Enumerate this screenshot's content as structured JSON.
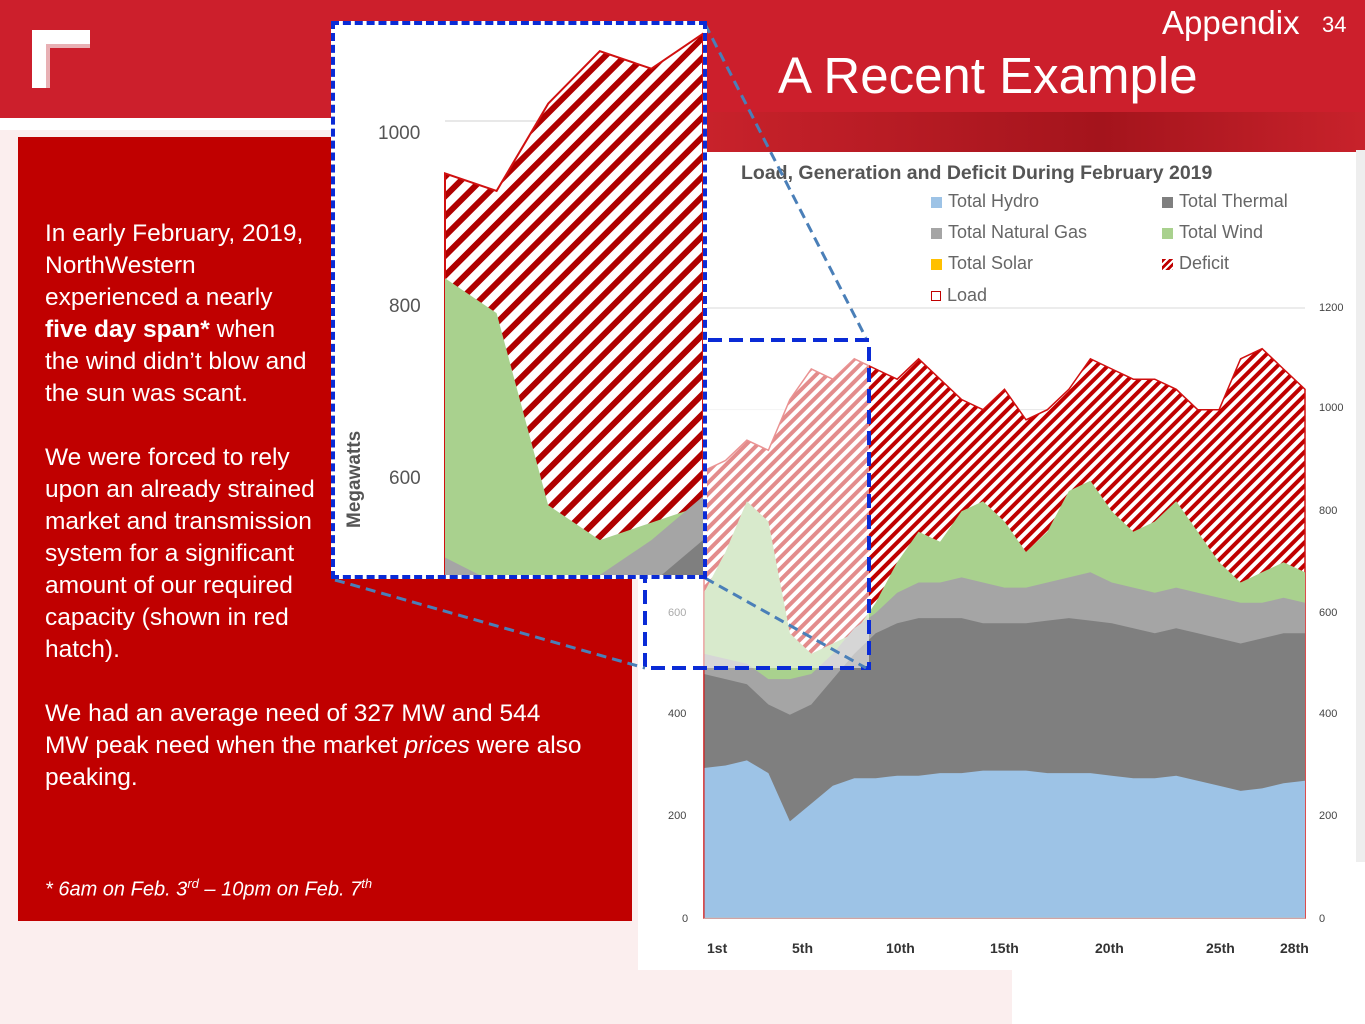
{
  "header": {
    "section": "Appendix",
    "page_number": "34",
    "title": "A Recent Example"
  },
  "left_panel": {
    "paragraph1_a": "In early February, 2019, NorthWestern experienced a nearly ",
    "paragraph1_bold": "five day span*",
    "paragraph1_b": " when the wind didn’t blow and the sun was scant.",
    "paragraph2": "We were forced to rely upon an already strained market and transmission system for a significant amount of our required capacity (shown in red hatch).",
    "paragraph3_a": "We had an average need of 327 MW and 544 MW peak need when the market ",
    "paragraph3_italic": "prices",
    "paragraph3_b": " were also peaking.",
    "footnote_a": "* 6am on Feb. 3",
    "footnote_sup1": "rd",
    "footnote_b": " – 10pm on Feb. 7",
    "footnote_sup2": "th"
  },
  "colors": {
    "header_red": "#cc1f2c",
    "panel_red": "#c00000",
    "hydro": "#9dc3e6",
    "thermal": "#7f7f7f",
    "natural_gas": "#a5a5a5",
    "wind": "#a9d18e",
    "solar": "#ffc000",
    "deficit": "#c00000",
    "inset_border": "#0a2bd6"
  },
  "chart_data": {
    "type": "area",
    "title": "Load, Generation and Deficit During February 2019",
    "legend": [
      {
        "name": "Total Hydro",
        "icon": "square-swatch"
      },
      {
        "name": "Total Thermal",
        "icon": "square-swatch"
      },
      {
        "name": "Total Natural Gas",
        "icon": "square-swatch"
      },
      {
        "name": "Total Wind",
        "icon": "square-swatch"
      },
      {
        "name": "Total Solar",
        "icon": "square-swatch"
      },
      {
        "name": "Deficit",
        "icon": "hatch-swatch"
      },
      {
        "name": "Load",
        "icon": "outline-swatch"
      }
    ],
    "y_ticks_left": [
      "0",
      "200",
      "400",
      "600"
    ],
    "y_ticks_right": [
      "0",
      "200",
      "400",
      "600",
      "800",
      "1000",
      "1200"
    ],
    "ylim": [
      0,
      1200
    ],
    "x_ticks": [
      "1st",
      "5th",
      "10th",
      "15th",
      "20th",
      "25th",
      "28th"
    ],
    "x_tick_days": [
      1,
      5,
      10,
      15,
      20,
      25,
      28
    ],
    "xlim": [
      1,
      29
    ],
    "series": [
      {
        "name": "Total Hydro",
        "day": [
          1,
          2,
          3,
          4,
          5,
          6,
          7,
          8,
          9,
          10,
          11,
          12,
          13,
          14,
          15,
          16,
          17,
          18,
          19,
          20,
          21,
          22,
          23,
          24,
          25,
          26,
          27,
          28,
          29
        ],
        "values": [
          295,
          300,
          310,
          285,
          190,
          225,
          260,
          275,
          275,
          280,
          280,
          285,
          285,
          290,
          290,
          290,
          285,
          285,
          285,
          280,
          275,
          275,
          280,
          270,
          260,
          250,
          255,
          265,
          270
        ]
      },
      {
        "name": "Total Thermal",
        "day": [
          1,
          2,
          3,
          4,
          5,
          6,
          7,
          8,
          9,
          10,
          11,
          12,
          13,
          14,
          15,
          16,
          17,
          18,
          19,
          20,
          21,
          22,
          23,
          24,
          25,
          26,
          27,
          28,
          29
        ],
        "values": [
          480,
          470,
          460,
          420,
          400,
          420,
          470,
          520,
          560,
          580,
          590,
          590,
          590,
          580,
          580,
          580,
          585,
          590,
          585,
          580,
          570,
          560,
          570,
          560,
          550,
          540,
          550,
          560,
          560
        ]
      },
      {
        "name": "Total Natural Gas",
        "day": [
          1,
          2,
          3,
          4,
          5,
          6,
          7,
          8,
          9,
          10,
          11,
          12,
          13,
          14,
          15,
          16,
          17,
          18,
          19,
          20,
          21,
          22,
          23,
          24,
          25,
          26,
          27,
          28,
          29
        ],
        "values": [
          520,
          510,
          500,
          470,
          470,
          480,
          520,
          570,
          600,
          640,
          660,
          660,
          670,
          660,
          650,
          650,
          660,
          670,
          680,
          660,
          650,
          640,
          650,
          640,
          630,
          620,
          620,
          630,
          620
        ]
      },
      {
        "name": "Total Wind",
        "day": [
          1,
          2,
          3,
          4,
          5,
          6,
          7,
          8,
          9,
          10,
          11,
          12,
          13,
          14,
          15,
          16,
          17,
          18,
          19,
          20,
          21,
          22,
          23,
          24,
          25,
          26,
          27,
          28,
          29
        ],
        "values": [
          640,
          720,
          820,
          780,
          560,
          520,
          540,
          560,
          620,
          700,
          760,
          740,
          800,
          820,
          780,
          720,
          760,
          840,
          860,
          800,
          760,
          780,
          820,
          760,
          700,
          660,
          680,
          700,
          680
        ]
      },
      {
        "name": "Load",
        "day": [
          1,
          2,
          3,
          4,
          5,
          6,
          7,
          8,
          9,
          10,
          11,
          12,
          13,
          14,
          15,
          16,
          17,
          18,
          19,
          20,
          21,
          22,
          23,
          24,
          25,
          26,
          27,
          28,
          29
        ],
        "values": [
          880,
          900,
          940,
          920,
          1020,
          1080,
          1060,
          1100,
          1080,
          1060,
          1100,
          1060,
          1020,
          1000,
          1040,
          980,
          1000,
          1040,
          1100,
          1080,
          1060,
          1060,
          1040,
          1000,
          1000,
          1100,
          1120,
          1080,
          1040
        ]
      }
    ]
  },
  "inset": {
    "y_ticks": [
      "1000",
      "800",
      "600"
    ],
    "ylabel": "Megawatts"
  }
}
